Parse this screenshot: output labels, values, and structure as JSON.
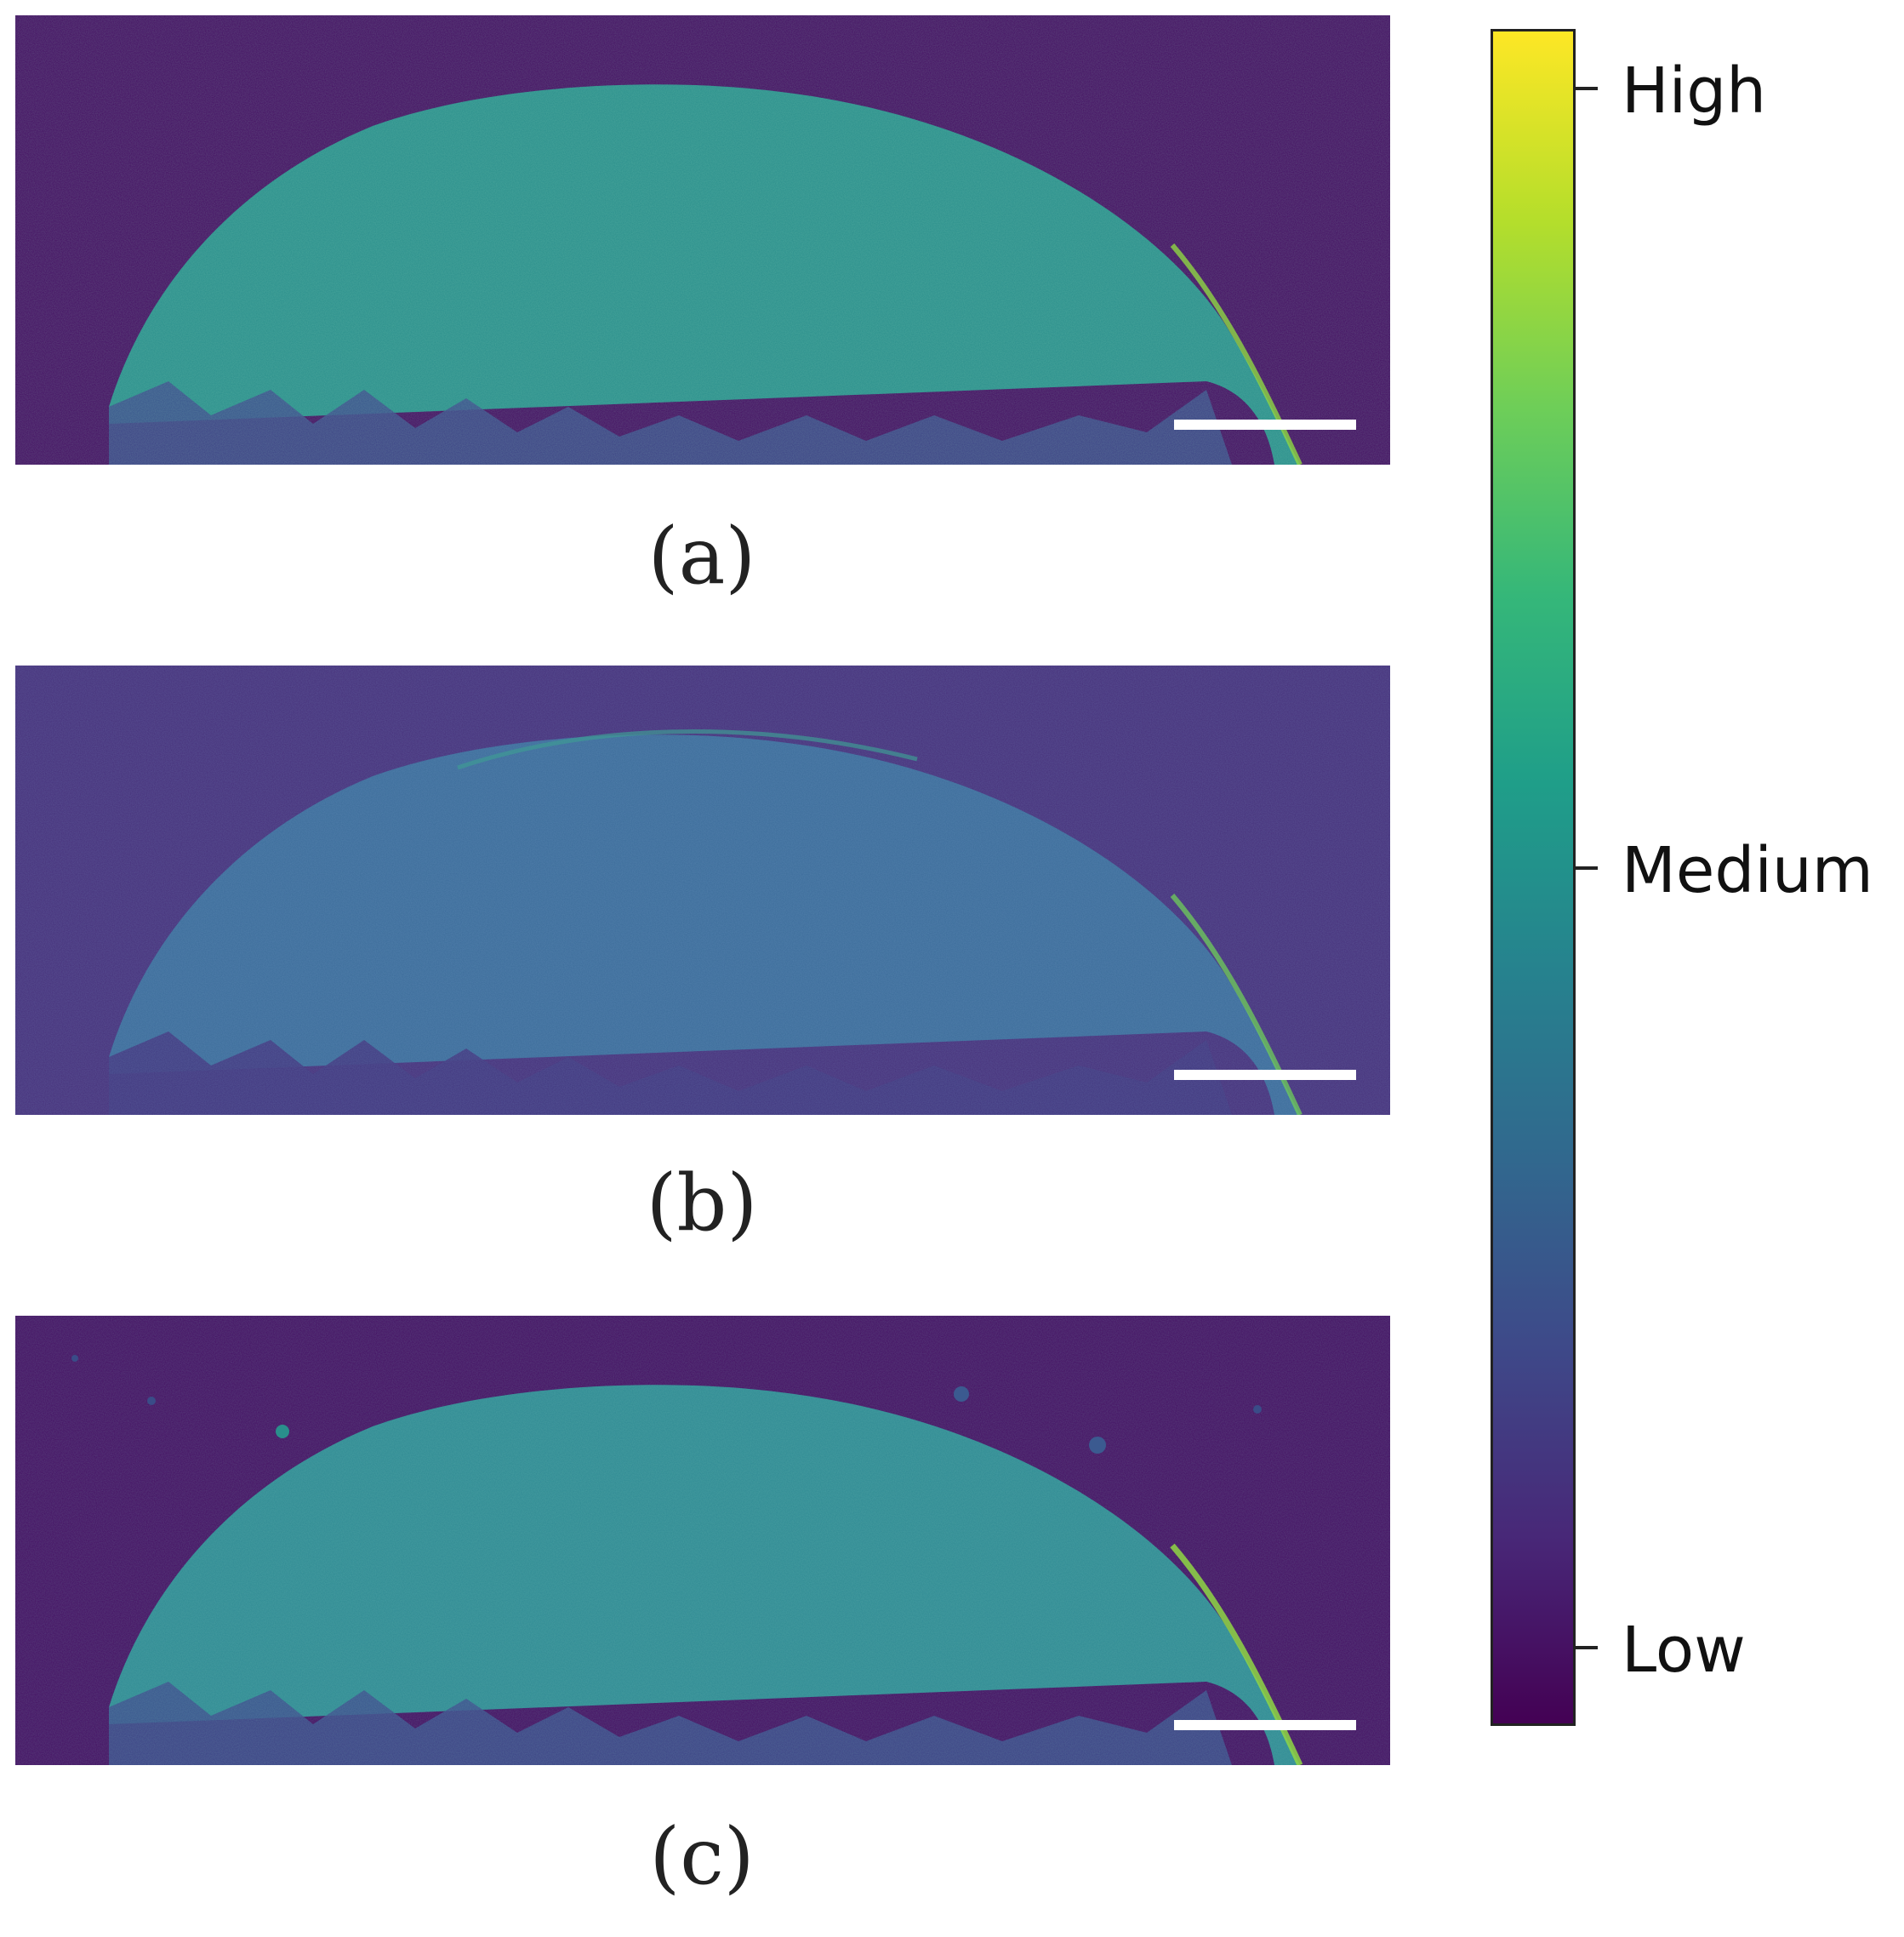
{
  "figure": {
    "panels": [
      {
        "id": "a",
        "label": "(a)",
        "fill_color": "#2a8f8c"
      },
      {
        "id": "b",
        "label": "(b)",
        "fill_color": "#3c6c9a"
      },
      {
        "id": "c",
        "label": "(c)",
        "fill_color": "#2f8a93"
      }
    ],
    "background_color": "#440e62",
    "edge_highlight_color": "#8fd744",
    "scale_bar_color": "#ffffff"
  },
  "colorbar": {
    "colormap": "viridis",
    "ticks": [
      {
        "label": "High",
        "level": 1.0
      },
      {
        "label": "Medium",
        "level": 0.5
      },
      {
        "label": "Low",
        "level": 0.0
      }
    ]
  }
}
